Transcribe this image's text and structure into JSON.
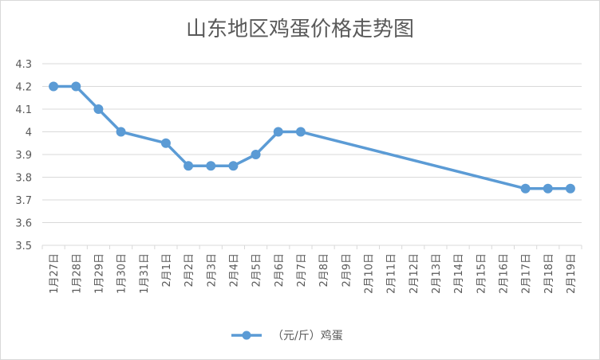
{
  "chart_data": {
    "type": "line",
    "title": "山东地区鸡蛋价格走势图",
    "xlabel": "",
    "ylabel": "",
    "ylim": [
      3.5,
      4.3
    ],
    "yticks": [
      "3.5",
      "3.6",
      "3.7",
      "3.8",
      "3.9",
      "4",
      "4.1",
      "4.2",
      "4.3"
    ],
    "grid": true,
    "legend_position": "bottom",
    "categories": [
      "1月27日",
      "1月28日",
      "1月29日",
      "1月30日",
      "1月31日",
      "2月1日",
      "2月2日",
      "2月3日",
      "2月4日",
      "2月5日",
      "2月6日",
      "2月7日",
      "2月8日",
      "2月9日",
      "2月10日",
      "2月11日",
      "2月12日",
      "2月13日",
      "2月14日",
      "2月15日",
      "2月16日",
      "2月17日",
      "2月18日",
      "2月19日"
    ],
    "series": [
      {
        "name": "（元/斤）鸡蛋",
        "color": "#5b9bd5",
        "values": [
          4.2,
          4.2,
          4.1,
          4.0,
          null,
          3.95,
          3.85,
          3.85,
          3.85,
          3.9,
          4.0,
          4.0,
          null,
          null,
          null,
          null,
          null,
          null,
          null,
          null,
          null,
          3.75,
          3.75,
          3.75
        ]
      }
    ]
  }
}
